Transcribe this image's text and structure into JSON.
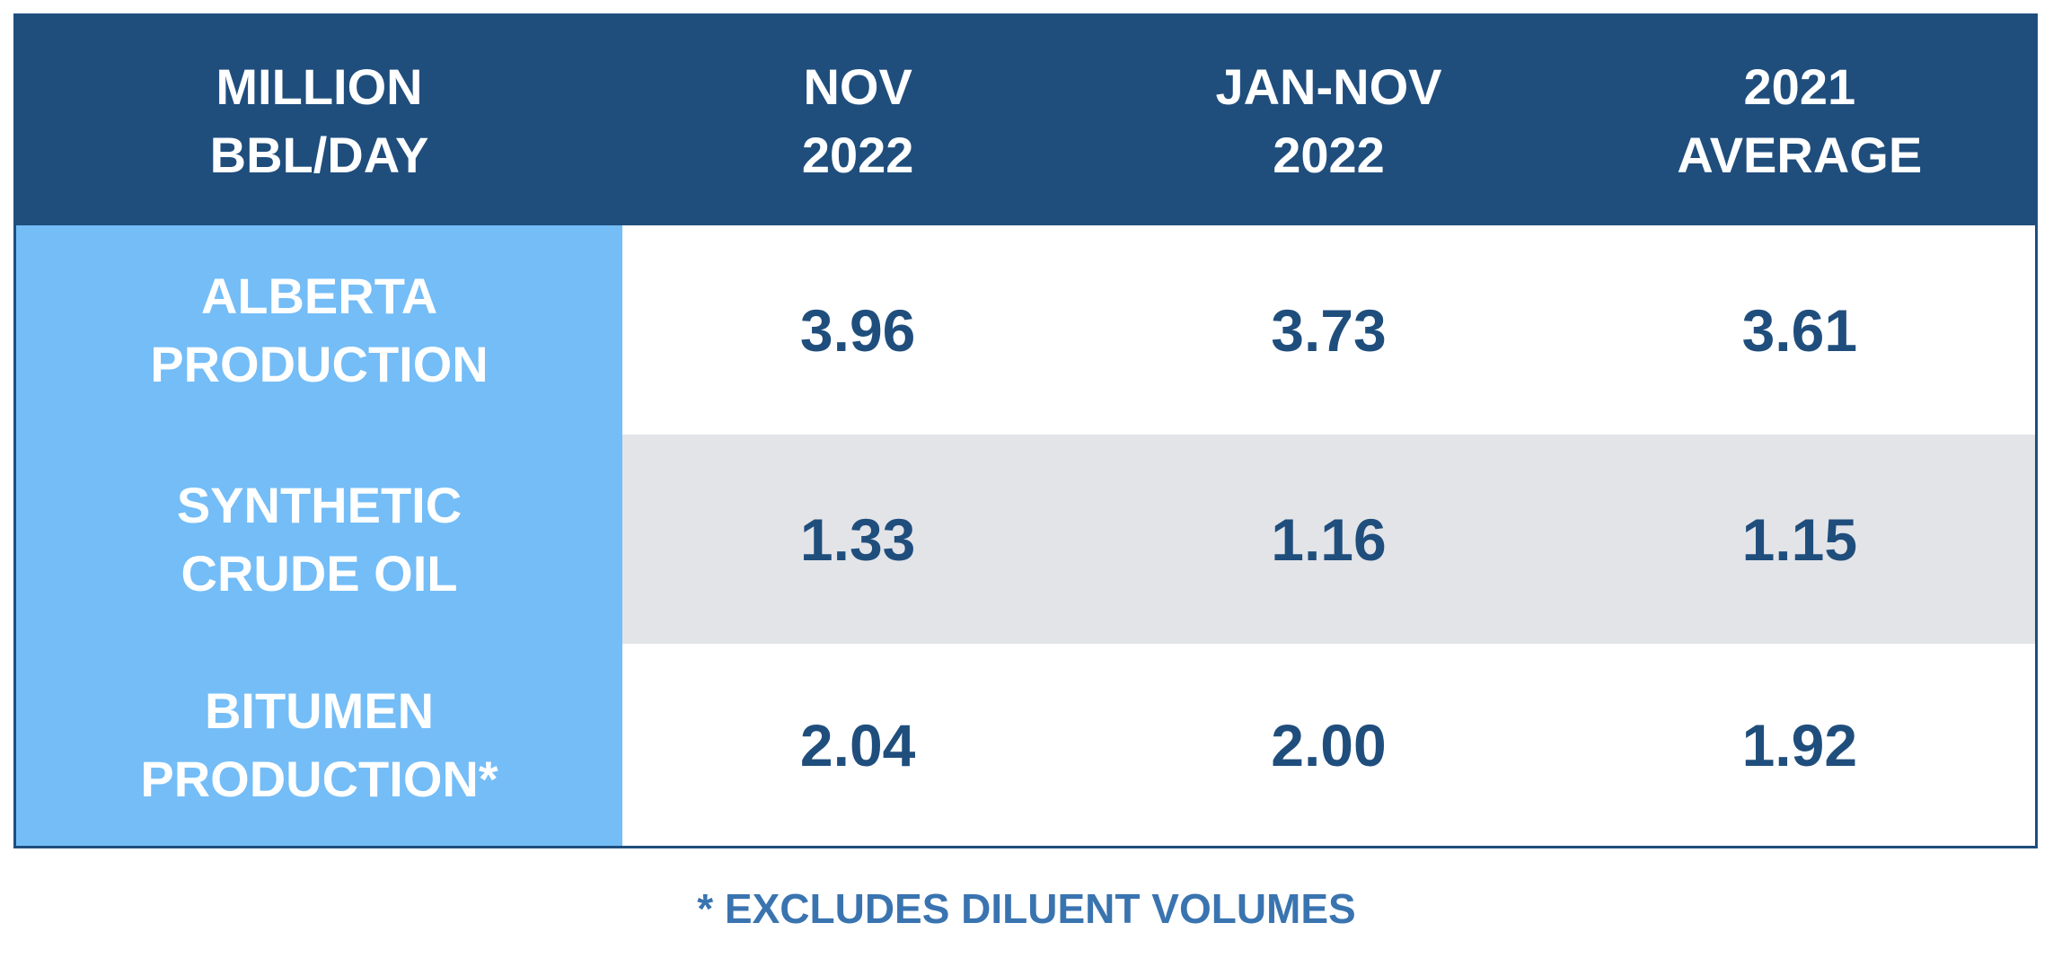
{
  "table": {
    "header": [
      [
        "MILLION",
        "BBL/DAY"
      ],
      [
        "NOV",
        "2022"
      ],
      [
        "JAN-NOV",
        "2022"
      ],
      [
        "2021",
        "AVERAGE"
      ]
    ],
    "rows": [
      {
        "label": [
          "ALBERTA",
          "PRODUCTION"
        ],
        "values": [
          "3.96",
          "3.73",
          "3.61"
        ]
      },
      {
        "label": [
          "SYNTHETIC",
          "CRUDE OIL"
        ],
        "values": [
          "1.33",
          "1.16",
          "1.15"
        ]
      },
      {
        "label": [
          "BITUMEN",
          "PRODUCTION*"
        ],
        "values": [
          "2.04",
          "2.00",
          "1.92"
        ]
      }
    ]
  },
  "footnote": "* EXCLUDES DILUENT VOLUMES"
}
